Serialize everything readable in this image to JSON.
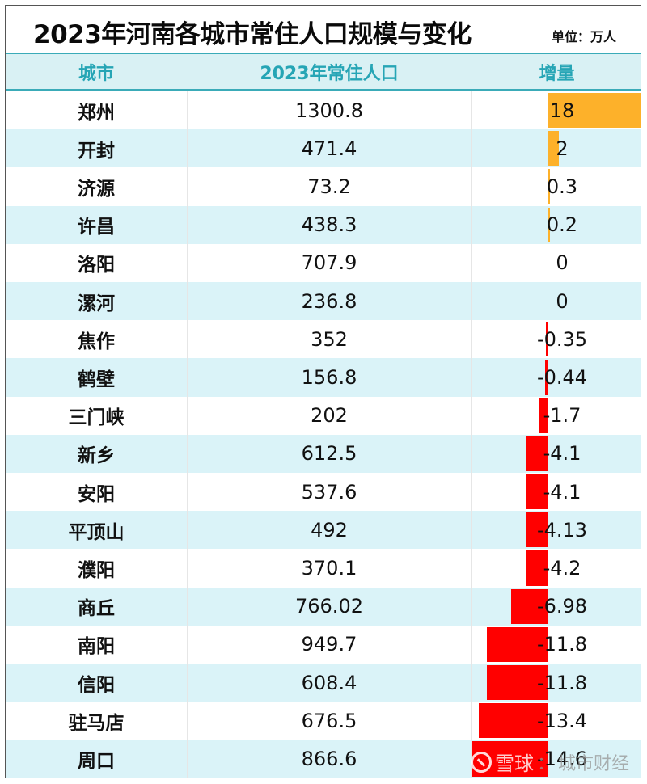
{
  "title": "2023年河南各城市常住人口规模与变化",
  "unit": "单位：万人",
  "header": {
    "city": "城市",
    "population": "2023年常住人口",
    "increment": "增量"
  },
  "colors": {
    "header_bg": "#d9f1f4",
    "header_text": "#26a5b5",
    "header_line": "#3aabb8",
    "alt_row_bg": "#daf3f8",
    "positive_bar": "#fdb12a",
    "negative_bar": "#ff0000"
  },
  "rows": [
    {
      "city": "郑州",
      "population": "1300.8",
      "increment": "18",
      "value": 18
    },
    {
      "city": "开封",
      "population": "471.4",
      "increment": "2",
      "value": 2
    },
    {
      "city": "济源",
      "population": "73.2",
      "increment": "0.3",
      "value": 0.3
    },
    {
      "city": "许昌",
      "population": "438.3",
      "increment": "0.2",
      "value": 0.2
    },
    {
      "city": "洛阳",
      "population": "707.9",
      "increment": "0",
      "value": 0
    },
    {
      "city": "漯河",
      "population": "236.8",
      "increment": "0",
      "value": 0
    },
    {
      "city": "焦作",
      "population": "352",
      "increment": "-0.35",
      "value": -0.35
    },
    {
      "city": "鹤壁",
      "population": "156.8",
      "increment": "-0.44",
      "value": -0.44
    },
    {
      "city": "三门峡",
      "population": "202",
      "increment": "-1.7",
      "value": -1.7
    },
    {
      "city": "新乡",
      "population": "612.5",
      "increment": "-4.1",
      "value": -4.1
    },
    {
      "city": "安阳",
      "population": "537.6",
      "increment": "-4.1",
      "value": -4.1
    },
    {
      "city": "平顶山",
      "population": "492",
      "increment": "-4.13",
      "value": -4.13
    },
    {
      "city": "濮阳",
      "population": "370.1",
      "increment": "-4.2",
      "value": -4.2
    },
    {
      "city": "商丘",
      "population": "766.02",
      "increment": "-6.98",
      "value": -6.98
    },
    {
      "city": "南阳",
      "population": "949.7",
      "increment": "-11.8",
      "value": -11.8
    },
    {
      "city": "信阳",
      "population": "608.4",
      "increment": "-11.8",
      "value": -11.8
    },
    {
      "city": "驻马店",
      "population": "676.5",
      "increment": "-13.4",
      "value": -13.4
    },
    {
      "city": "周口",
      "population": "866.6",
      "increment": "-14.6",
      "value": -14.6
    }
  ],
  "watermark": {
    "brand": "雪球",
    "separator": "：",
    "account": "城市财经"
  },
  "chart_data": {
    "type": "table",
    "title": "2023年河南各城市常住人口规模与变化",
    "unit": "万人",
    "columns": [
      "城市",
      "2023年常住人口",
      "增量"
    ],
    "categories": [
      "郑州",
      "开封",
      "济源",
      "许昌",
      "洛阳",
      "漯河",
      "焦作",
      "鹤壁",
      "三门峡",
      "新乡",
      "安阳",
      "平顶山",
      "濮阳",
      "商丘",
      "南阳",
      "信阳",
      "驻马店",
      "周口"
    ],
    "series": [
      {
        "name": "2023年常住人口",
        "values": [
          1300.8,
          471.4,
          73.2,
          438.3,
          707.9,
          236.8,
          352,
          156.8,
          202,
          612.5,
          537.6,
          492,
          370.1,
          766.02,
          949.7,
          608.4,
          676.5,
          866.6
        ]
      },
      {
        "name": "增量",
        "type": "bar",
        "values": [
          18,
          2,
          0.3,
          0.2,
          0,
          0,
          -0.35,
          -0.44,
          -1.7,
          -4.1,
          -4.1,
          -4.13,
          -4.2,
          -6.98,
          -11.8,
          -11.8,
          -13.4,
          -14.6
        ]
      }
    ],
    "bar_colors": {
      "positive": "#fdb12a",
      "negative": "#ff0000"
    },
    "grid": false,
    "legend": null
  }
}
